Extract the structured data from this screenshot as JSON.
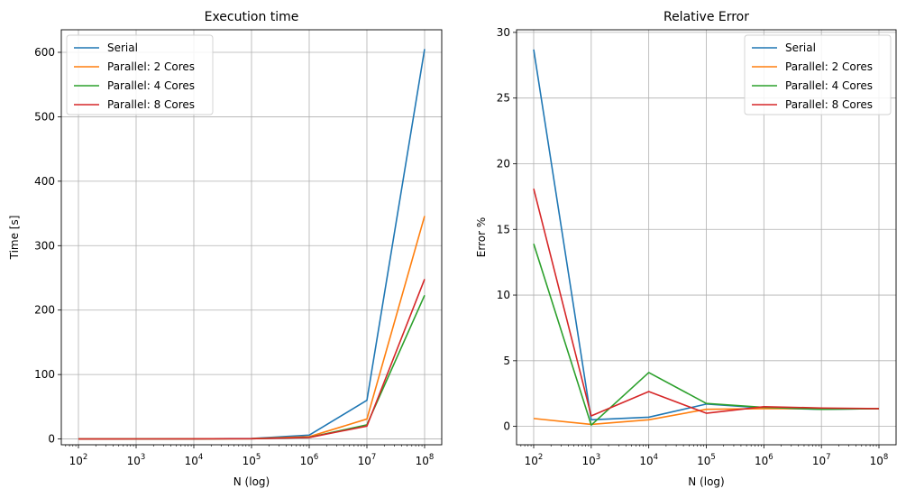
{
  "chart_data": [
    {
      "type": "line",
      "title": "Execution time",
      "xlabel": "N (log)",
      "ylabel": "Time [s]",
      "xscale": "log",
      "x": [
        100,
        1000,
        10000,
        100000,
        1000000,
        10000000,
        100000000
      ],
      "x_ticks": [
        {
          "base": "10",
          "exp": "2"
        },
        {
          "base": "10",
          "exp": "3"
        },
        {
          "base": "10",
          "exp": "4"
        },
        {
          "base": "10",
          "exp": "5"
        },
        {
          "base": "10",
          "exp": "6"
        },
        {
          "base": "10",
          "exp": "7"
        },
        {
          "base": "10",
          "exp": "8"
        }
      ],
      "y_ticks": [
        "0",
        "100",
        "200",
        "300",
        "400",
        "500",
        "600"
      ],
      "ylim": [
        -9,
        635
      ],
      "grid": true,
      "legend": "top-left",
      "series": [
        {
          "name": "Serial",
          "color": "#1f77b4",
          "values": [
            0.05,
            0.1,
            0.2,
            0.8,
            6,
            60,
            605
          ]
        },
        {
          "name": "Parallel: 2 Cores",
          "color": "#ff7f0e",
          "values": [
            0.05,
            0.1,
            0.2,
            0.5,
            3.5,
            31,
            346
          ]
        },
        {
          "name": "Parallel: 4 Cores",
          "color": "#2ca02c",
          "values": [
            0.05,
            0.1,
            0.15,
            0.4,
            2.5,
            22,
            223
          ]
        },
        {
          "name": "Parallel: 8 Cores",
          "color": "#d62728",
          "values": [
            0.05,
            0.1,
            0.15,
            0.4,
            2.3,
            20,
            248
          ]
        }
      ]
    },
    {
      "type": "line",
      "title": "Relative Error",
      "xlabel": "N (log)",
      "ylabel": "Error %",
      "xscale": "log",
      "x": [
        100,
        1000,
        10000,
        100000,
        1000000,
        10000000,
        100000000
      ],
      "x_ticks": [
        {
          "base": "10",
          "exp": "2"
        },
        {
          "base": "10",
          "exp": "3"
        },
        {
          "base": "10",
          "exp": "4"
        },
        {
          "base": "10",
          "exp": "5"
        },
        {
          "base": "10",
          "exp": "6"
        },
        {
          "base": "10",
          "exp": "7"
        },
        {
          "base": "10",
          "exp": "8"
        }
      ],
      "y_ticks": [
        "0",
        "5",
        "10",
        "15",
        "20",
        "25",
        "30"
      ],
      "ylim": [
        -1.4,
        30.2
      ],
      "grid": true,
      "legend": "top-right",
      "series": [
        {
          "name": "Serial",
          "color": "#1f77b4",
          "values": [
            28.7,
            0.5,
            0.7,
            1.7,
            1.4,
            1.3,
            1.35
          ]
        },
        {
          "name": "Parallel: 2 Cores",
          "color": "#ff7f0e",
          "values": [
            0.6,
            0.15,
            0.5,
            1.3,
            1.35,
            1.35,
            1.35
          ]
        },
        {
          "name": "Parallel: 4 Cores",
          "color": "#2ca02c",
          "values": [
            13.9,
            0.1,
            4.1,
            1.75,
            1.45,
            1.3,
            1.35
          ]
        },
        {
          "name": "Parallel: 8 Cores",
          "color": "#d62728",
          "values": [
            18.1,
            0.8,
            2.65,
            1.0,
            1.5,
            1.4,
            1.35
          ]
        }
      ]
    }
  ]
}
